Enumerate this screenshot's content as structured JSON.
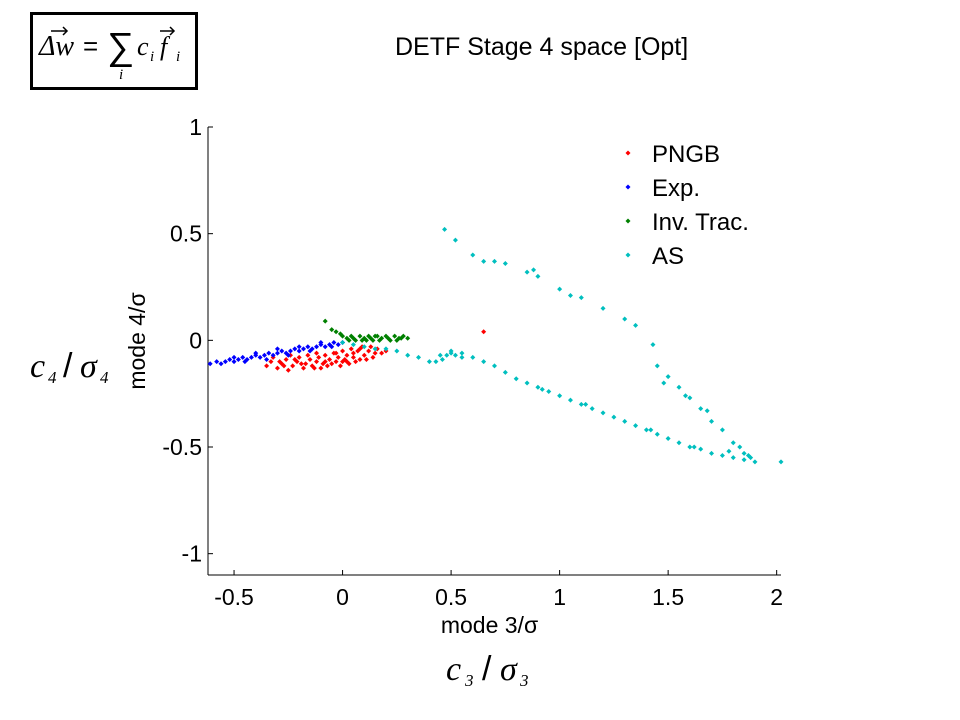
{
  "title": "DETF Stage 4 space [Opt]",
  "formula": {
    "lhs": "Δw",
    "eq": "=",
    "sum": "∑",
    "index": "i",
    "term_c": "c",
    "term_f": "f",
    "sub": "i"
  },
  "outer_xlabel": {
    "var": "c",
    "sub": "3",
    "slash": "/",
    "sigma": "σ",
    "sigsub": "3"
  },
  "outer_ylabel": {
    "var": "c",
    "sub": "4",
    "slash": "/",
    "sigma": "σ",
    "sigsub": "4"
  },
  "chart_data": {
    "type": "scatter",
    "xlabel": "mode 3/σ",
    "ylabel": "mode 4/σ",
    "xlim": [
      -0.62,
      2.02
    ],
    "ylim": [
      -1.1,
      1.0
    ],
    "xticks": [
      "-0.5",
      "0",
      "0.5",
      "1",
      "1.5",
      "2"
    ],
    "xtick_values": [
      -0.5,
      0,
      0.5,
      1,
      1.5,
      2
    ],
    "yticks": [
      "1",
      "0.5",
      "0",
      "-0.5",
      "-1"
    ],
    "ytick_values": [
      1,
      0.5,
      0,
      -0.5,
      -1
    ],
    "grid": false,
    "legend_position": "top-right",
    "series": [
      {
        "name": "PNGB",
        "color": "#ff0000",
        "points": [
          [
            -0.35,
            -0.12
          ],
          [
            -0.33,
            -0.1
          ],
          [
            -0.3,
            -0.13
          ],
          [
            -0.28,
            -0.11
          ],
          [
            -0.26,
            -0.09
          ],
          [
            -0.25,
            -0.14
          ],
          [
            -0.23,
            -0.12
          ],
          [
            -0.21,
            -0.1
          ],
          [
            -0.2,
            -0.08
          ],
          [
            -0.18,
            -0.13
          ],
          [
            -0.17,
            -0.11
          ],
          [
            -0.15,
            -0.09
          ],
          [
            -0.14,
            -0.12
          ],
          [
            -0.12,
            -0.1
          ],
          [
            -0.11,
            -0.08
          ],
          [
            -0.1,
            -0.13
          ],
          [
            -0.09,
            -0.11
          ],
          [
            -0.08,
            -0.07
          ],
          [
            -0.07,
            -0.12
          ],
          [
            -0.06,
            -0.09
          ],
          [
            -0.05,
            -0.11
          ],
          [
            -0.04,
            -0.06
          ],
          [
            -0.03,
            -0.1
          ],
          [
            -0.02,
            -0.08
          ],
          [
            -0.01,
            -0.12
          ],
          [
            0.0,
            -0.05
          ],
          [
            0.01,
            -0.09
          ],
          [
            0.02,
            -0.07
          ],
          [
            0.03,
            -0.11
          ],
          [
            0.04,
            -0.04
          ],
          [
            0.05,
            -0.08
          ],
          [
            0.06,
            -0.1
          ],
          [
            0.07,
            -0.05
          ],
          [
            0.08,
            -0.09
          ],
          [
            0.09,
            -0.03
          ],
          [
            0.1,
            -0.07
          ],
          [
            0.12,
            -0.05
          ],
          [
            0.14,
            -0.08
          ],
          [
            0.16,
            -0.04
          ],
          [
            0.18,
            -0.06
          ],
          [
            -0.32,
            -0.08
          ],
          [
            -0.29,
            -0.1
          ],
          [
            -0.24,
            -0.07
          ],
          [
            -0.19,
            -0.11
          ],
          [
            -0.16,
            -0.07
          ],
          [
            -0.13,
            -0.13
          ],
          [
            -0.08,
            -0.1
          ],
          [
            -0.03,
            -0.06
          ],
          [
            0.02,
            -0.1
          ],
          [
            0.05,
            -0.06
          ],
          [
            0.11,
            -0.09
          ],
          [
            0.15,
            -0.06
          ],
          [
            -0.27,
            -0.12
          ],
          [
            -0.22,
            -0.09
          ],
          [
            -0.12,
            -0.06
          ],
          [
            0.0,
            -0.1
          ],
          [
            0.08,
            -0.04
          ],
          [
            0.65,
            0.04
          ],
          [
            0.2,
            -0.05
          ],
          [
            0.13,
            -0.03
          ]
        ]
      },
      {
        "name": "Exp.",
        "color": "#0000ff",
        "points": [
          [
            -0.61,
            -0.11
          ],
          [
            -0.58,
            -0.1
          ],
          [
            -0.56,
            -0.11
          ],
          [
            -0.54,
            -0.1
          ],
          [
            -0.52,
            -0.09
          ],
          [
            -0.5,
            -0.1
          ],
          [
            -0.48,
            -0.09
          ],
          [
            -0.46,
            -0.08
          ],
          [
            -0.44,
            -0.09
          ],
          [
            -0.42,
            -0.08
          ],
          [
            -0.4,
            -0.07
          ],
          [
            -0.38,
            -0.08
          ],
          [
            -0.36,
            -0.07
          ],
          [
            -0.34,
            -0.06
          ],
          [
            -0.32,
            -0.07
          ],
          [
            -0.3,
            -0.06
          ],
          [
            -0.28,
            -0.05
          ],
          [
            -0.26,
            -0.06
          ],
          [
            -0.24,
            -0.05
          ],
          [
            -0.22,
            -0.04
          ],
          [
            -0.2,
            -0.05
          ],
          [
            -0.18,
            -0.04
          ],
          [
            -0.16,
            -0.03
          ],
          [
            -0.14,
            -0.04
          ],
          [
            -0.12,
            -0.03
          ],
          [
            -0.1,
            -0.02
          ],
          [
            -0.08,
            -0.03
          ],
          [
            -0.06,
            -0.02
          ],
          [
            -0.04,
            -0.01
          ],
          [
            -0.02,
            -0.02
          ],
          [
            0.0,
            -0.01
          ],
          [
            -0.45,
            -0.1
          ],
          [
            -0.35,
            -0.09
          ],
          [
            -0.25,
            -0.07
          ],
          [
            -0.15,
            -0.05
          ],
          [
            -0.05,
            -0.03
          ],
          [
            -0.5,
            -0.08
          ],
          [
            -0.4,
            -0.06
          ],
          [
            -0.3,
            -0.04
          ],
          [
            -0.2,
            -0.03
          ],
          [
            -0.1,
            -0.01
          ]
        ]
      },
      {
        "name": "Inv. Trac.",
        "color": "#008000",
        "points": [
          [
            -0.08,
            0.09
          ],
          [
            -0.05,
            0.05
          ],
          [
            -0.03,
            0.04
          ],
          [
            0.0,
            0.02
          ],
          [
            0.02,
            0.01
          ],
          [
            0.04,
            0.02
          ],
          [
            0.06,
            0.0
          ],
          [
            0.08,
            0.02
          ],
          [
            0.1,
            0.01
          ],
          [
            0.12,
            0.02
          ],
          [
            0.14,
            0.0
          ],
          [
            0.16,
            0.02
          ],
          [
            0.18,
            0.01
          ],
          [
            0.2,
            0.02
          ],
          [
            0.22,
            0.0
          ],
          [
            0.24,
            0.02
          ],
          [
            0.26,
            0.01
          ],
          [
            0.28,
            0.02
          ],
          [
            0.3,
            0.01
          ],
          [
            0.05,
            0.01
          ],
          [
            0.09,
            0.0
          ],
          [
            0.13,
            0.01
          ],
          [
            0.17,
            0.0
          ],
          [
            0.21,
            0.01
          ],
          [
            0.25,
            0.0
          ],
          [
            0.15,
            0.02
          ],
          [
            0.27,
            0.01
          ],
          [
            -0.01,
            0.03
          ],
          [
            0.03,
            0.0
          ],
          [
            0.11,
            0.0
          ]
        ]
      },
      {
        "name": "AS",
        "color": "#00bfbf",
        "points": [
          [
            0.0,
            -0.01
          ],
          [
            0.05,
            -0.02
          ],
          [
            0.1,
            -0.03
          ],
          [
            0.15,
            -0.04
          ],
          [
            0.2,
            -0.04
          ],
          [
            0.25,
            -0.05
          ],
          [
            0.3,
            -0.07
          ],
          [
            0.35,
            -0.08
          ],
          [
            0.4,
            -0.1
          ],
          [
            0.43,
            -0.1
          ],
          [
            0.46,
            -0.09
          ],
          [
            0.48,
            -0.07
          ],
          [
            0.5,
            -0.06
          ],
          [
            0.52,
            -0.07
          ],
          [
            0.55,
            -0.08
          ],
          [
            0.6,
            -0.08
          ],
          [
            0.65,
            -0.1
          ],
          [
            0.7,
            -0.12
          ],
          [
            0.75,
            -0.15
          ],
          [
            0.8,
            -0.18
          ],
          [
            0.85,
            -0.2
          ],
          [
            0.9,
            -0.22
          ],
          [
            0.95,
            -0.24
          ],
          [
            1.0,
            -0.26
          ],
          [
            1.05,
            -0.28
          ],
          [
            1.1,
            -0.3
          ],
          [
            1.15,
            -0.32
          ],
          [
            1.2,
            -0.34
          ],
          [
            1.25,
            -0.36
          ],
          [
            1.3,
            -0.38
          ],
          [
            1.35,
            -0.4
          ],
          [
            1.4,
            -0.42
          ],
          [
            1.45,
            -0.44
          ],
          [
            1.5,
            -0.46
          ],
          [
            1.55,
            -0.48
          ],
          [
            1.6,
            -0.5
          ],
          [
            1.65,
            -0.51
          ],
          [
            1.7,
            -0.53
          ],
          [
            1.75,
            -0.54
          ],
          [
            1.8,
            -0.55
          ],
          [
            1.85,
            -0.56
          ],
          [
            1.9,
            -0.57
          ],
          [
            2.02,
            -0.57
          ],
          [
            0.47,
            0.52
          ],
          [
            0.52,
            0.47
          ],
          [
            0.6,
            0.4
          ],
          [
            0.65,
            0.37
          ],
          [
            0.7,
            0.37
          ],
          [
            0.75,
            0.36
          ],
          [
            0.85,
            0.32
          ],
          [
            0.88,
            0.33
          ],
          [
            0.9,
            0.3
          ],
          [
            1.0,
            0.24
          ],
          [
            1.05,
            0.21
          ],
          [
            1.1,
            0.2
          ],
          [
            1.2,
            0.15
          ],
          [
            1.3,
            0.1
          ],
          [
            1.35,
            0.07
          ],
          [
            1.43,
            -0.02
          ],
          [
            1.45,
            -0.12
          ],
          [
            1.5,
            -0.17
          ],
          [
            1.55,
            -0.22
          ],
          [
            1.6,
            -0.27
          ],
          [
            1.65,
            -0.32
          ],
          [
            1.7,
            -0.38
          ],
          [
            1.75,
            -0.42
          ],
          [
            1.8,
            -0.48
          ],
          [
            1.85,
            -0.53
          ],
          [
            1.88,
            -0.55
          ],
          [
            0.92,
            -0.23
          ],
          [
            1.12,
            -0.3
          ],
          [
            1.42,
            -0.42
          ],
          [
            1.62,
            -0.5
          ],
          [
            1.78,
            -0.52
          ],
          [
            1.83,
            -0.5
          ],
          [
            1.87,
            -0.54
          ],
          [
            0.5,
            -0.05
          ],
          [
            0.55,
            -0.06
          ],
          [
            0.45,
            -0.07
          ],
          [
            1.48,
            -0.2
          ],
          [
            1.58,
            -0.26
          ],
          [
            1.68,
            -0.33
          ]
        ]
      }
    ]
  }
}
